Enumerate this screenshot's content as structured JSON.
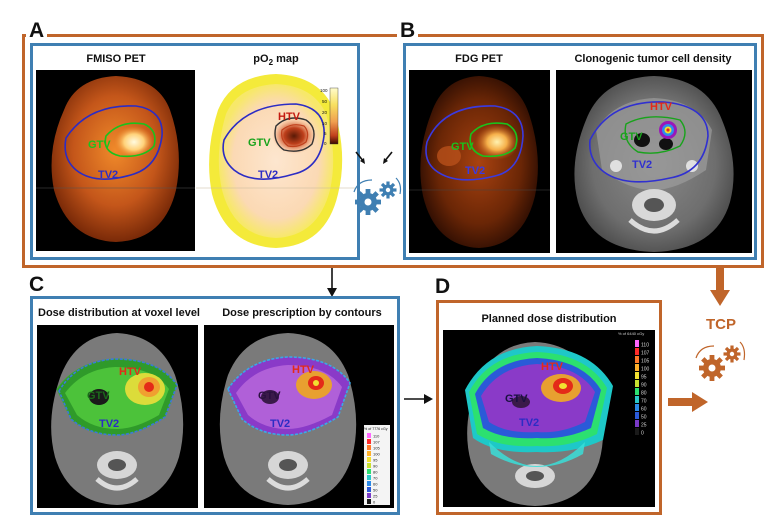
{
  "panels": {
    "a": {
      "letter": "A",
      "left_caption": "FMISO PET",
      "right_caption_main": "pO",
      "right_caption_sub": "2",
      "right_caption_tail": " map"
    },
    "b": {
      "letter": "B",
      "left_caption": "FDG PET",
      "right_caption": "Clonogenic tumor cell density"
    },
    "c": {
      "letter": "C",
      "left_caption": "Dose distribution at voxel level",
      "right_caption": "Dose prescription by contours"
    },
    "d": {
      "letter": "D",
      "caption": "Planned dose distribution"
    }
  },
  "contour_labels": {
    "gtv": "GTV",
    "tv2": "TV2",
    "htv": "HTV"
  },
  "tcp": "TCP",
  "po2_scale": [
    "100",
    "50",
    "20",
    "10",
    "5",
    "0"
  ],
  "legend_c": {
    "title": "% of 7776 cGy",
    "values": [
      "110",
      "107",
      "105",
      "100",
      "95",
      "90",
      "80",
      "70",
      "60",
      "50",
      "25",
      "0"
    ]
  },
  "legend_d": {
    "title": "% of 6440 cGy",
    "values": [
      "110",
      "107",
      "105",
      "100",
      "95",
      "90",
      "80",
      "70",
      "60",
      "50",
      "25",
      "0"
    ]
  },
  "colors": {
    "orange_frame": "#c0652a",
    "blue_frame": "#3f7fb2",
    "gtv": "#19c31c",
    "tv2": "#2c2cc4",
    "htv": "#e42a18"
  }
}
